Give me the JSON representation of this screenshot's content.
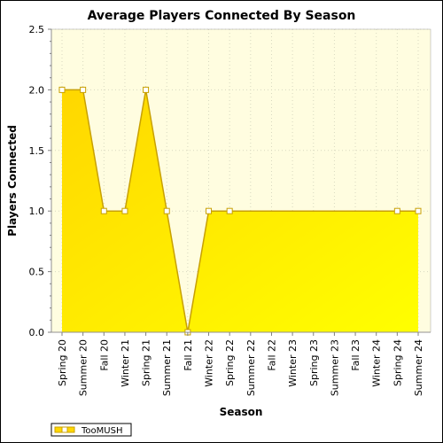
{
  "chart_data": {
    "type": "area",
    "title": "Average Players Connected By Season",
    "xlabel": "Season",
    "ylabel": "Players Connected",
    "categories": [
      "Spring 20",
      "Summer 20",
      "Fall 20",
      "Winter 21",
      "Spring 21",
      "Summer 21",
      "Fall 21",
      "Winter 22",
      "Spring 22",
      "Summer 22",
      "Fall 22",
      "Winter 23",
      "Spring 23",
      "Summer 23",
      "Fall 23",
      "Winter 24",
      "Spring 24",
      "Summer 24"
    ],
    "ylim": [
      0,
      2.5
    ],
    "yticks": [
      "0.0",
      "0.5",
      "1.0",
      "1.5",
      "2.0",
      "2.5"
    ],
    "grid": true,
    "legend_position": "bottom-left",
    "series": [
      {
        "name": "TooMUSH",
        "values": [
          2,
          2,
          1,
          1,
          2,
          1,
          0,
          1,
          1,
          null,
          null,
          null,
          null,
          null,
          null,
          null,
          1,
          1
        ],
        "fill_color": "#ffe600",
        "line_color": "#c8a000"
      }
    ],
    "colors": {
      "plot_background": "#fffde0",
      "fill_top": "#ffd700",
      "fill_bottom": "#ffff00"
    }
  }
}
